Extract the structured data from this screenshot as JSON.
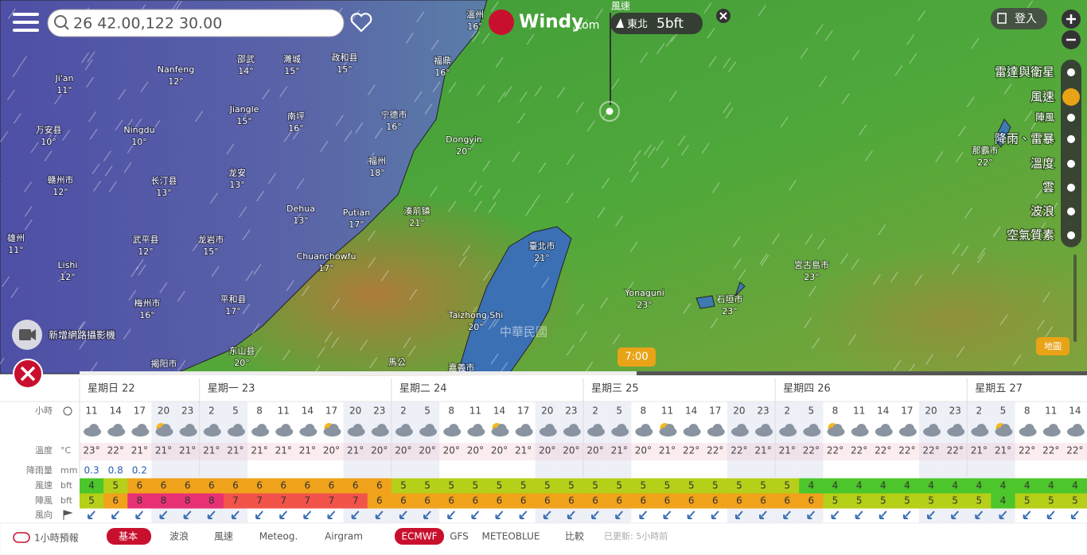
{
  "header": {
    "search": "26 42.00,122 30.00",
    "logo": "Windy",
    "logo_suffix": ".com",
    "login": "登入"
  },
  "marker": {
    "layer": "風速",
    "direction": "東北",
    "force": "5bft"
  },
  "layers": [
    "雷達與衛星",
    "風速",
    "陣風",
    "降雨、雷暴",
    "溫度",
    "雲",
    "波浪",
    "空氣質素"
  ],
  "map": {
    "watermark": "中華民國",
    "camera": "新增網路攝影機",
    "time": "7:00",
    "base_map": "地圖",
    "places": [
      {
        "name": "溫州",
        "temp": "16°"
      },
      {
        "name": "Nanfeng",
        "temp": "12°"
      },
      {
        "name": "邵武",
        "temp": "14°"
      },
      {
        "name": "濉城",
        "temp": "15°"
      },
      {
        "name": "政和县",
        "temp": "15°"
      },
      {
        "name": "福鼎",
        "temp": "16°"
      },
      {
        "name": "Ji'an",
        "temp": "11°"
      },
      {
        "name": "Jiangle",
        "temp": "15°"
      },
      {
        "name": "南坪",
        "temp": "16°"
      },
      {
        "name": "宁德市",
        "temp": "16°"
      },
      {
        "name": "万安县",
        "temp": "10°"
      },
      {
        "name": "Ningdu",
        "temp": "10°"
      },
      {
        "name": "Dongyin",
        "temp": "20°"
      },
      {
        "name": "福州",
        "temp": "18°"
      },
      {
        "name": "龙安",
        "temp": "13°"
      },
      {
        "name": "赣州市",
        "temp": "12°"
      },
      {
        "name": "长汀县",
        "temp": "13°"
      },
      {
        "name": "Dehua",
        "temp": "13°"
      },
      {
        "name": "Putian",
        "temp": "17°"
      },
      {
        "name": "湊前镇",
        "temp": "21°"
      },
      {
        "name": "雄州",
        "temp": "11°"
      },
      {
        "name": "武平县",
        "temp": "12°"
      },
      {
        "name": "龙岩市",
        "temp": "15°"
      },
      {
        "name": "臺北市",
        "temp": "21°"
      },
      {
        "name": "Chuanchowfu",
        "temp": "17°"
      },
      {
        "name": "宮古島市",
        "temp": "23°"
      },
      {
        "name": "Lishi",
        "temp": "12°"
      },
      {
        "name": "平和县",
        "temp": "17°"
      },
      {
        "name": "梅州市",
        "temp": "16°"
      },
      {
        "name": "Yonaguni",
        "temp": "23°"
      },
      {
        "name": "石垣市",
        "temp": "23°"
      },
      {
        "name": "Taizhong Shi",
        "temp": "20°"
      },
      {
        "name": "那霸市",
        "temp": "22°"
      },
      {
        "name": "东山县",
        "temp": "20°"
      },
      {
        "name": "揭阳市"
      },
      {
        "name": "馬公"
      },
      {
        "name": "嘉義市"
      }
    ]
  },
  "forecast": {
    "days": [
      "星期日 22",
      "星期一 23",
      "星期二 24",
      "星期三 25",
      "星期四 26",
      "星期五 27"
    ],
    "row_labels": {
      "hours": "小時",
      "temp": "溫度",
      "temp_unit": "°C",
      "rain": "降雨量",
      "rain_unit": "mm",
      "wind": "風速",
      "wind_unit": "bft",
      "gust": "陣風",
      "gust_unit": "bft",
      "direction": "風向"
    },
    "hours": [
      11,
      14,
      17,
      20,
      23,
      2,
      5,
      8,
      11,
      14,
      17,
      20,
      23,
      2,
      5,
      8,
      11,
      14,
      17,
      20,
      23,
      2,
      5,
      8,
      11,
      14,
      17,
      20,
      23,
      2,
      5,
      8,
      11,
      14,
      17,
      20,
      23,
      2,
      5,
      8,
      11,
      14
    ],
    "temps": [
      "23°",
      "22°",
      "21°",
      "21°",
      "21°",
      "21°",
      "21°",
      "21°",
      "21°",
      "21°",
      "20°",
      "21°",
      "20°",
      "20°",
      "20°",
      "20°",
      "20°",
      "20°",
      "21°",
      "20°",
      "20°",
      "20°",
      "21°",
      "20°",
      "21°",
      "22°",
      "22°",
      "22°",
      "21°",
      "21°",
      "22°",
      "22°",
      "22°",
      "22°",
      "22°",
      "22°",
      "22°",
      "21°",
      "21°",
      "22°",
      "22°",
      "22°"
    ],
    "rain": [
      0.3,
      0.8,
      0.2
    ],
    "wind": [
      4,
      5,
      6,
      6,
      6,
      6,
      6,
      6,
      6,
      6,
      6,
      6,
      6,
      5,
      5,
      5,
      5,
      5,
      5,
      5,
      5,
      5,
      5,
      5,
      5,
      5,
      5,
      5,
      5,
      5,
      4,
      4,
      4,
      4,
      4,
      4,
      4,
      4,
      4,
      4,
      4,
      4
    ],
    "gust": [
      5,
      6,
      8,
      8,
      8,
      8,
      7,
      7,
      7,
      7,
      7,
      7,
      6,
      6,
      6,
      6,
      6,
      6,
      6,
      6,
      6,
      6,
      6,
      6,
      6,
      6,
      6,
      6,
      6,
      6,
      6,
      5,
      5,
      5,
      5,
      5,
      5,
      5,
      4,
      5,
      5,
      5
    ]
  },
  "footer": {
    "hourly": "1小時預報",
    "tabs": [
      "基本",
      "波浪",
      "風速",
      "Meteog.",
      "Airgram"
    ],
    "models": [
      "ECMWF",
      "GFS",
      "METEOBLUE"
    ],
    "compare": "比較",
    "updated": "已更新: 5小時前"
  }
}
